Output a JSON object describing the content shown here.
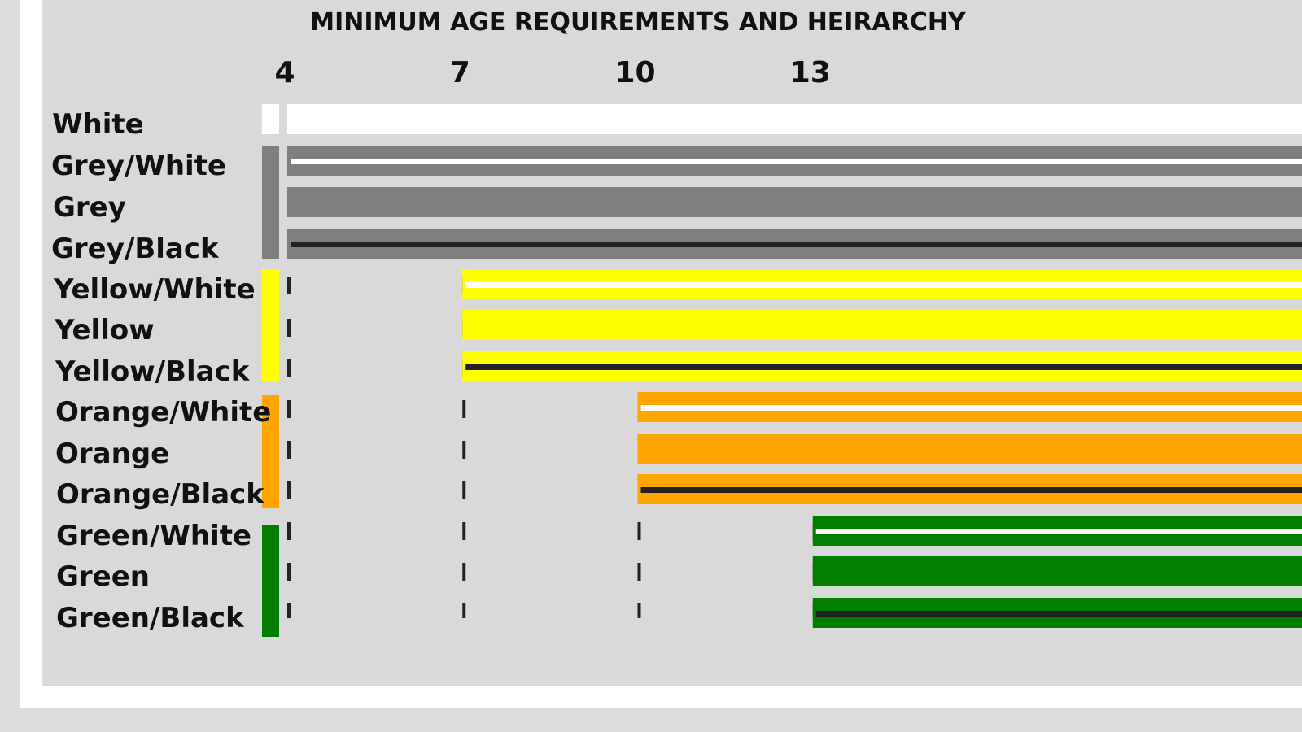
{
  "chart_data": {
    "type": "bar",
    "subtype": "horizontal-range",
    "title": "MINIMUM AGE REQUIREMENTS AND HEIRARCHY",
    "xlabel": "",
    "ylabel": "",
    "x_ticks": [
      4,
      7,
      10,
      13
    ],
    "xlim": [
      4,
      22
    ],
    "grid": "dashed vertical lines at ticks",
    "groups": [
      {
        "name": "White",
        "color": "#ffffff"
      },
      {
        "name": "Grey",
        "color": "#7f7f7f"
      },
      {
        "name": "Yellow",
        "color": "#ffff00"
      },
      {
        "name": "Orange",
        "color": "#ffa500"
      },
      {
        "name": "Green",
        "color": "#007f00"
      }
    ],
    "categories": [
      "White",
      "Grey/White",
      "Grey",
      "Grey/Black",
      "Yellow/White",
      "Yellow",
      "Yellow/Black",
      "Orange/White",
      "Orange",
      "Orange/Black",
      "Green/White",
      "Green",
      "Green/Black"
    ],
    "bars": [
      {
        "label": "White",
        "min_age": 4,
        "group": "White",
        "fill": "#ffffff",
        "stripe": null
      },
      {
        "label": "Grey/White",
        "min_age": 4,
        "group": "Grey",
        "fill": "#7f7f7f",
        "stripe": "#ffffff"
      },
      {
        "label": "Grey",
        "min_age": 4,
        "group": "Grey",
        "fill": "#7f7f7f",
        "stripe": null
      },
      {
        "label": "Grey/Black",
        "min_age": 4,
        "group": "Grey",
        "fill": "#7f7f7f",
        "stripe": "#222222"
      },
      {
        "label": "Yellow/White",
        "min_age": 7,
        "group": "Yellow",
        "fill": "#ffff00",
        "stripe": "#ffffff"
      },
      {
        "label": "Yellow",
        "min_age": 7,
        "group": "Yellow",
        "fill": "#ffff00",
        "stripe": null
      },
      {
        "label": "Yellow/Black",
        "min_age": 7,
        "group": "Yellow",
        "fill": "#ffff00",
        "stripe": "#222222"
      },
      {
        "label": "Orange/White",
        "min_age": 10,
        "group": "Orange",
        "fill": "#ffa500",
        "stripe": "#ffffff"
      },
      {
        "label": "Orange",
        "min_age": 10,
        "group": "Orange",
        "fill": "#ffa500",
        "stripe": null
      },
      {
        "label": "Orange/Black",
        "min_age": 10,
        "group": "Orange",
        "fill": "#ffa500",
        "stripe": "#222222"
      },
      {
        "label": "Green/White",
        "min_age": 13,
        "group": "Green",
        "fill": "#007f00",
        "stripe": "#ffffff"
      },
      {
        "label": "Green",
        "min_age": 13,
        "group": "Green",
        "fill": "#007f00",
        "stripe": null
      },
      {
        "label": "Green/Black",
        "min_age": 13,
        "group": "Green",
        "fill": "#007f00",
        "stripe": "#222222"
      }
    ]
  }
}
